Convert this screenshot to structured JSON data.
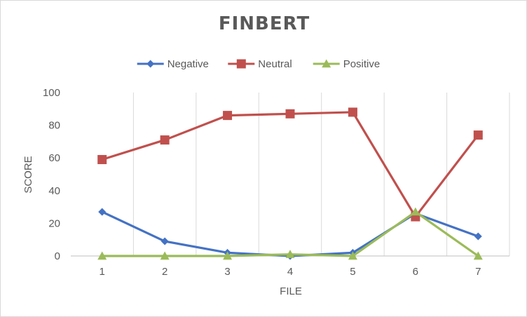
{
  "chart_data": {
    "type": "line",
    "title": "FINBERT",
    "xlabel": "FILE",
    "ylabel": "SCORE",
    "categories": [
      "1",
      "2",
      "3",
      "4",
      "5",
      "6",
      "7"
    ],
    "ylim": [
      0,
      100
    ],
    "yticks": [
      0,
      20,
      40,
      60,
      80,
      100
    ],
    "grid": "vertical",
    "legend_position": "top",
    "series": [
      {
        "name": "Negative",
        "marker": "diamond",
        "color": "#4472C4",
        "values": [
          27,
          9,
          2,
          0,
          2,
          26,
          12
        ]
      },
      {
        "name": "Neutral",
        "marker": "square",
        "color": "#C0504D",
        "values": [
          59,
          71,
          86,
          87,
          88,
          24,
          74
        ]
      },
      {
        "name": "Positive",
        "marker": "triangle",
        "color": "#9BBB59",
        "values": [
          0,
          0,
          0,
          1,
          0,
          27,
          0
        ]
      }
    ]
  }
}
